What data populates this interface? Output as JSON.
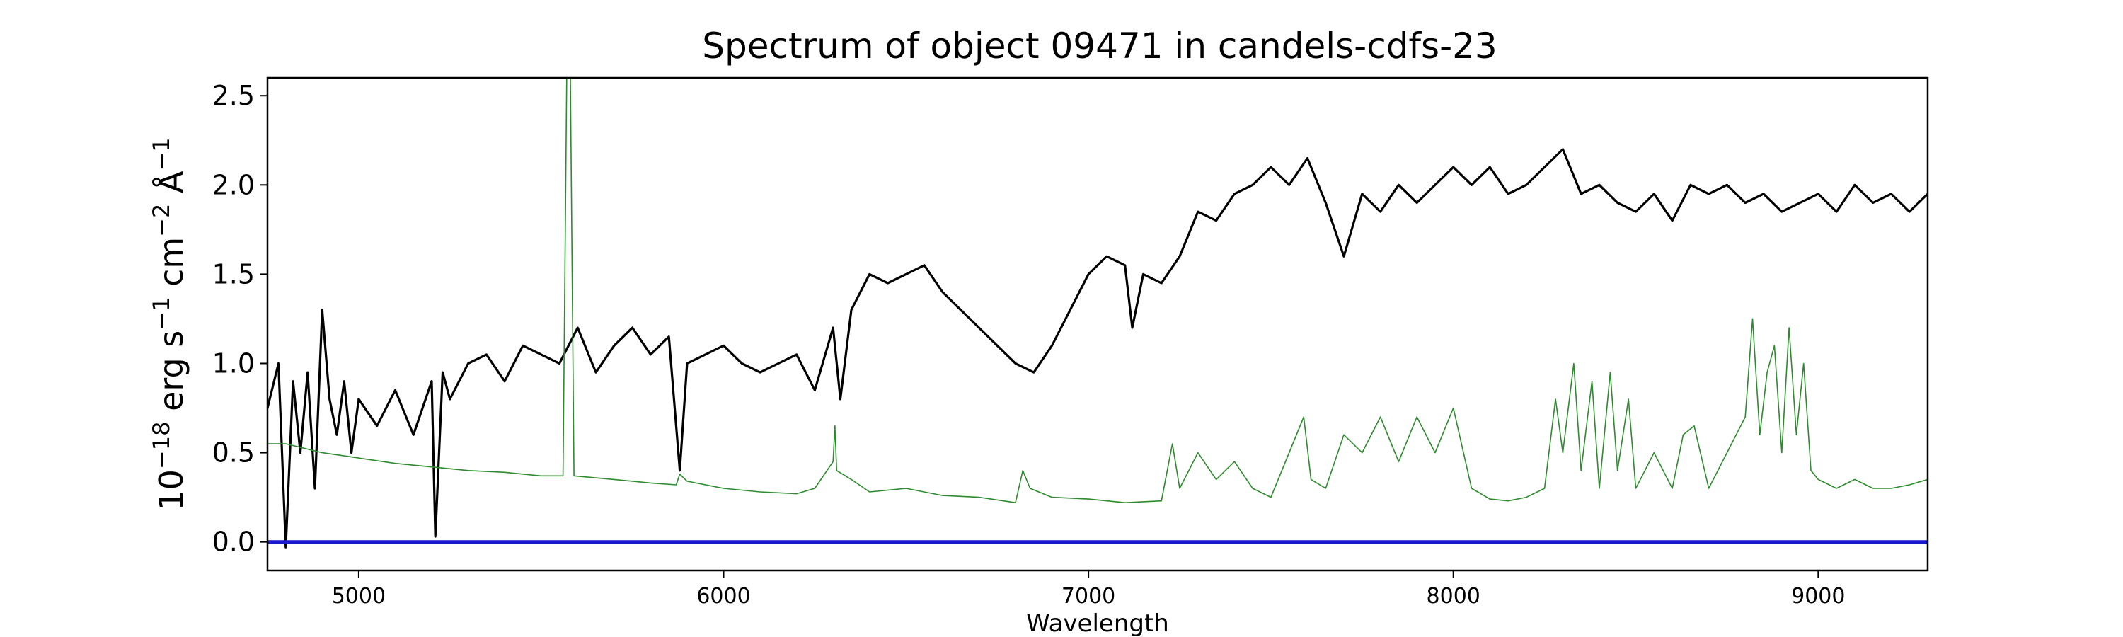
{
  "chart_data": {
    "type": "line",
    "title": "Spectrum of object 09471 in candels-cdfs-23",
    "xlabel": "Wavelength",
    "ylabel_parts": [
      "10",
      "−18",
      " erg s",
      "−1",
      " cm",
      "−2",
      " Å",
      "−1"
    ],
    "xlim": [
      4750,
      9300
    ],
    "ylim": [
      -0.16,
      2.6
    ],
    "xticks": [
      5000,
      6000,
      7000,
      8000,
      9000
    ],
    "xtick_labels": [
      "5000",
      "6000",
      "7000",
      "8000",
      "9000"
    ],
    "yticks": [
      0.0,
      0.5,
      1.0,
      1.5,
      2.0,
      2.5
    ],
    "ytick_labels": [
      "0.0",
      "0.5",
      "1.0",
      "1.5",
      "2.0",
      "2.5"
    ],
    "grid": false,
    "legend": "none",
    "series": [
      {
        "role": "flux",
        "color": "#000000",
        "x": [
          4750,
          4780,
          4800,
          4820,
          4840,
          4860,
          4880,
          4900,
          4920,
          4940,
          4960,
          4980,
          5000,
          5050,
          5100,
          5150,
          5200,
          5210,
          5230,
          5250,
          5300,
          5350,
          5400,
          5450,
          5500,
          5550,
          5600,
          5650,
          5700,
          5750,
          5800,
          5850,
          5880,
          5900,
          5950,
          6000,
          6050,
          6100,
          6150,
          6200,
          6250,
          6300,
          6320,
          6350,
          6400,
          6450,
          6500,
          6550,
          6600,
          6650,
          6700,
          6750,
          6800,
          6850,
          6900,
          6950,
          7000,
          7050,
          7100,
          7120,
          7150,
          7200,
          7250,
          7300,
          7350,
          7400,
          7450,
          7500,
          7550,
          7600,
          7650,
          7700,
          7750,
          7800,
          7850,
          7900,
          7950,
          8000,
          8050,
          8100,
          8150,
          8200,
          8250,
          8300,
          8350,
          8400,
          8450,
          8500,
          8550,
          8600,
          8650,
          8700,
          8750,
          8800,
          8850,
          8900,
          8950,
          9000,
          9050,
          9100,
          9150,
          9200,
          9250,
          9300
        ],
        "y": [
          0.75,
          1.0,
          -0.03,
          0.9,
          0.5,
          0.95,
          0.3,
          1.3,
          0.8,
          0.6,
          0.9,
          0.5,
          0.8,
          0.65,
          0.85,
          0.6,
          0.9,
          0.03,
          0.95,
          0.8,
          1.0,
          1.05,
          0.9,
          1.1,
          1.05,
          1.0,
          1.2,
          0.95,
          1.1,
          1.2,
          1.05,
          1.15,
          0.4,
          1.0,
          1.05,
          1.1,
          1.0,
          0.95,
          1.0,
          1.05,
          0.85,
          1.2,
          0.8,
          1.3,
          1.5,
          1.45,
          1.5,
          1.55,
          1.4,
          1.3,
          1.2,
          1.1,
          1.0,
          0.95,
          1.1,
          1.3,
          1.5,
          1.6,
          1.55,
          1.2,
          1.5,
          1.45,
          1.6,
          1.85,
          1.8,
          1.95,
          2.0,
          2.1,
          2.0,
          2.15,
          1.9,
          1.6,
          1.95,
          1.85,
          2.0,
          1.9,
          2.0,
          2.1,
          2.0,
          2.1,
          1.95,
          2.0,
          2.1,
          2.2,
          1.95,
          2.0,
          1.9,
          1.85,
          1.95,
          1.8,
          2.0,
          1.95,
          2.0,
          1.9,
          1.95,
          1.85,
          1.9,
          1.95,
          1.85,
          2.0,
          1.9,
          1.95,
          1.85,
          1.95
        ]
      },
      {
        "role": "error",
        "color": "#2e8b2e",
        "x": [
          4750,
          4800,
          4900,
          5000,
          5100,
          5200,
          5300,
          5400,
          5500,
          5560,
          5570,
          5575,
          5580,
          5590,
          5700,
          5800,
          5870,
          5880,
          5900,
          6000,
          6100,
          6200,
          6250,
          6300,
          6305,
          6310,
          6350,
          6400,
          6500,
          6600,
          6700,
          6800,
          6820,
          6840,
          6900,
          7000,
          7100,
          7200,
          7230,
          7250,
          7300,
          7350,
          7400,
          7450,
          7500,
          7550,
          7590,
          7610,
          7650,
          7700,
          7750,
          7800,
          7850,
          7900,
          7950,
          8000,
          8050,
          8100,
          8150,
          8200,
          8250,
          8280,
          8300,
          8330,
          8350,
          8380,
          8400,
          8430,
          8450,
          8480,
          8500,
          8550,
          8600,
          8630,
          8660,
          8700,
          8750,
          8800,
          8820,
          8840,
          8860,
          8880,
          8900,
          8920,
          8940,
          8960,
          8980,
          9000,
          9050,
          9100,
          9150,
          9200,
          9250,
          9300
        ],
        "y": [
          0.55,
          0.55,
          0.5,
          0.47,
          0.44,
          0.42,
          0.4,
          0.39,
          0.37,
          0.37,
          2.6,
          2.6,
          2.6,
          0.37,
          0.35,
          0.33,
          0.32,
          0.38,
          0.34,
          0.3,
          0.28,
          0.27,
          0.3,
          0.45,
          0.65,
          0.4,
          0.35,
          0.28,
          0.3,
          0.26,
          0.25,
          0.22,
          0.4,
          0.3,
          0.25,
          0.24,
          0.22,
          0.23,
          0.55,
          0.3,
          0.5,
          0.35,
          0.45,
          0.3,
          0.25,
          0.5,
          0.7,
          0.35,
          0.3,
          0.6,
          0.5,
          0.7,
          0.45,
          0.7,
          0.5,
          0.75,
          0.3,
          0.24,
          0.23,
          0.25,
          0.3,
          0.8,
          0.5,
          1.0,
          0.4,
          0.9,
          0.3,
          0.95,
          0.4,
          0.8,
          0.3,
          0.5,
          0.3,
          0.6,
          0.65,
          0.3,
          0.5,
          0.7,
          1.25,
          0.6,
          0.95,
          1.1,
          0.5,
          1.2,
          0.6,
          1.0,
          0.4,
          0.35,
          0.3,
          0.35,
          0.3,
          0.3,
          0.32,
          0.35
        ]
      },
      {
        "role": "zero",
        "color": "#1a1acc",
        "x": [
          4750,
          9300
        ],
        "y": [
          0.0,
          0.0
        ]
      }
    ]
  }
}
